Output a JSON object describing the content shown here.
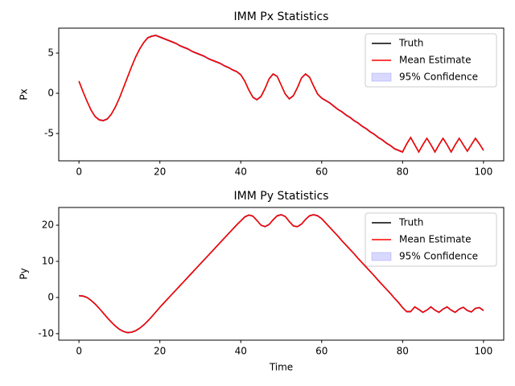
{
  "chart_data": [
    {
      "type": "line",
      "title": "IMM Px Statistics",
      "ylabel": "Px",
      "x": [
        0,
        1,
        2,
        3,
        4,
        5,
        6,
        7,
        8,
        9,
        10,
        11,
        12,
        13,
        14,
        15,
        16,
        17,
        18,
        19,
        20,
        21,
        22,
        23,
        24,
        25,
        26,
        27,
        28,
        29,
        30,
        31,
        32,
        33,
        34,
        35,
        36,
        37,
        38,
        39,
        40,
        41,
        42,
        43,
        44,
        45,
        46,
        47,
        48,
        49,
        50,
        51,
        52,
        53,
        54,
        55,
        56,
        57,
        58,
        59,
        60,
        61,
        62,
        63,
        64,
        65,
        66,
        67,
        68,
        69,
        70,
        71,
        72,
        73,
        74,
        75,
        76,
        77,
        78,
        79,
        80,
        81,
        82,
        83,
        84,
        85,
        86,
        87,
        88,
        89,
        90,
        91,
        92,
        93,
        94,
        95,
        96,
        97,
        98,
        99,
        100
      ],
      "series": [
        {
          "name": "Truth",
          "color": "#000000",
          "values": [
            1.5,
            0.2,
            -1.0,
            -2.1,
            -2.9,
            -3.3,
            -3.4,
            -3.2,
            -2.6,
            -1.7,
            -0.6,
            0.7,
            2.0,
            3.3,
            4.5,
            5.5,
            6.3,
            6.9,
            7.1,
            7.2,
            7.0,
            6.8,
            6.6,
            6.4,
            6.2,
            5.9,
            5.7,
            5.5,
            5.2,
            5.0,
            4.8,
            4.6,
            4.3,
            4.1,
            3.9,
            3.7,
            3.4,
            3.2,
            2.9,
            2.7,
            2.3,
            1.5,
            0.4,
            -0.5,
            -0.8,
            -0.4,
            0.6,
            1.8,
            2.4,
            2.1,
            1.0,
            -0.1,
            -0.7,
            -0.3,
            0.7,
            1.9,
            2.4,
            2.0,
            0.9,
            -0.1,
            -0.6,
            -0.9,
            -1.2,
            -1.6,
            -2.0,
            -2.3,
            -2.7,
            -3.0,
            -3.4,
            -3.7,
            -4.1,
            -4.4,
            -4.8,
            -5.1,
            -5.5,
            -5.8,
            -6.2,
            -6.5,
            -6.9,
            -7.1,
            -7.3,
            -6.3,
            -5.5,
            -6.4,
            -7.3,
            -6.4,
            -5.6,
            -6.4,
            -7.3,
            -6.4,
            -5.6,
            -6.4,
            -7.3,
            -6.4,
            -5.6,
            -6.4,
            -7.2,
            -6.4,
            -5.6,
            -6.3,
            -7.1
          ]
        },
        {
          "name": "Mean Estimate",
          "color": "#ff0000",
          "values": [
            1.5,
            0.2,
            -1.0,
            -2.1,
            -2.9,
            -3.3,
            -3.4,
            -3.2,
            -2.6,
            -1.7,
            -0.6,
            0.7,
            2.0,
            3.3,
            4.5,
            5.5,
            6.3,
            6.9,
            7.1,
            7.2,
            7.0,
            6.8,
            6.6,
            6.4,
            6.2,
            5.9,
            5.7,
            5.5,
            5.2,
            5.0,
            4.8,
            4.6,
            4.3,
            4.1,
            3.9,
            3.7,
            3.4,
            3.2,
            2.9,
            2.7,
            2.3,
            1.5,
            0.4,
            -0.5,
            -0.8,
            -0.4,
            0.6,
            1.8,
            2.4,
            2.1,
            1.0,
            -0.1,
            -0.7,
            -0.3,
            0.7,
            1.9,
            2.4,
            2.0,
            0.9,
            -0.1,
            -0.6,
            -0.9,
            -1.2,
            -1.6,
            -2.0,
            -2.3,
            -2.7,
            -3.0,
            -3.4,
            -3.7,
            -4.1,
            -4.4,
            -4.8,
            -5.1,
            -5.5,
            -5.8,
            -6.2,
            -6.5,
            -6.9,
            -7.1,
            -7.3,
            -6.3,
            -5.5,
            -6.4,
            -7.3,
            -6.4,
            -5.6,
            -6.4,
            -7.3,
            -6.4,
            -5.6,
            -6.4,
            -7.3,
            -6.4,
            -5.6,
            -6.4,
            -7.2,
            -6.4,
            -5.6,
            -6.3,
            -7.1
          ]
        },
        {
          "name": "95% Confidence",
          "color": "#0000ff",
          "error": 0.15
        }
      ],
      "xlim": [
        -5,
        105
      ],
      "ylim": [
        -8.4,
        8.1
      ],
      "xticks": [
        0,
        20,
        40,
        60,
        80,
        100
      ],
      "yticks": [
        -5,
        0,
        5
      ],
      "legend": "upper right"
    },
    {
      "type": "line",
      "title": "IMM Py Statistics",
      "xlabel": "Time",
      "ylabel": "Py",
      "x": [
        0,
        1,
        2,
        3,
        4,
        5,
        6,
        7,
        8,
        9,
        10,
        11,
        12,
        13,
        14,
        15,
        16,
        17,
        18,
        19,
        20,
        21,
        22,
        23,
        24,
        25,
        26,
        27,
        28,
        29,
        30,
        31,
        32,
        33,
        34,
        35,
        36,
        37,
        38,
        39,
        40,
        41,
        42,
        43,
        44,
        45,
        46,
        47,
        48,
        49,
        50,
        51,
        52,
        53,
        54,
        55,
        56,
        57,
        58,
        59,
        60,
        61,
        62,
        63,
        64,
        65,
        66,
        67,
        68,
        69,
        70,
        71,
        72,
        73,
        74,
        75,
        76,
        77,
        78,
        79,
        80,
        81,
        82,
        83,
        84,
        85,
        86,
        87,
        88,
        89,
        90,
        91,
        92,
        93,
        94,
        95,
        96,
        97,
        98,
        99,
        100
      ],
      "series": [
        {
          "name": "Truth",
          "color": "#000000",
          "values": [
            0.5,
            0.4,
            0,
            -0.8,
            -1.8,
            -3,
            -4.3,
            -5.6,
            -6.8,
            -7.9,
            -8.8,
            -9.4,
            -9.7,
            -9.6,
            -9.2,
            -8.5,
            -7.6,
            -6.5,
            -5.3,
            -4.0,
            -2.7,
            -1.5,
            -0.3,
            0.9,
            2.1,
            3.3,
            4.5,
            5.7,
            6.9,
            8.1,
            9.3,
            10.5,
            11.7,
            12.9,
            14.1,
            15.3,
            16.5,
            17.7,
            18.9,
            20.1,
            21.2,
            22.3,
            22.8,
            22.5,
            21.3,
            20.0,
            19.6,
            20.2,
            21.5,
            22.6,
            22.9,
            22.4,
            21.0,
            19.8,
            19.6,
            20.3,
            21.6,
            22.6,
            22.9,
            22.6,
            21.8,
            20.6,
            19.4,
            18.2,
            17.0,
            15.7,
            14.5,
            13.3,
            12.1,
            10.8,
            9.6,
            8.4,
            7.2,
            6.0,
            4.7,
            3.5,
            2.3,
            1.1,
            -0.2,
            -1.4,
            -2.8,
            -3.9,
            -3.9,
            -2.6,
            -3.3,
            -4.1,
            -3.5,
            -2.6,
            -3.5,
            -4.1,
            -3.2,
            -2.6,
            -3.5,
            -4.1,
            -3.2,
            -2.7,
            -3.6,
            -4.0,
            -3.0,
            -2.8,
            -3.6
          ]
        },
        {
          "name": "Mean Estimate",
          "color": "#ff0000",
          "values": [
            0.5,
            0.4,
            0,
            -0.8,
            -1.8,
            -3,
            -4.3,
            -5.6,
            -6.8,
            -7.9,
            -8.8,
            -9.4,
            -9.7,
            -9.6,
            -9.2,
            -8.5,
            -7.6,
            -6.5,
            -5.3,
            -4.0,
            -2.7,
            -1.5,
            -0.3,
            0.9,
            2.1,
            3.3,
            4.5,
            5.7,
            6.9,
            8.1,
            9.3,
            10.5,
            11.7,
            12.9,
            14.1,
            15.3,
            16.5,
            17.7,
            18.9,
            20.1,
            21.2,
            22.3,
            22.8,
            22.5,
            21.3,
            20.0,
            19.6,
            20.2,
            21.5,
            22.6,
            22.9,
            22.4,
            21.0,
            19.8,
            19.6,
            20.3,
            21.6,
            22.6,
            22.9,
            22.6,
            21.8,
            20.6,
            19.4,
            18.2,
            17.0,
            15.7,
            14.5,
            13.3,
            12.1,
            10.8,
            9.6,
            8.4,
            7.2,
            6.0,
            4.7,
            3.5,
            2.3,
            1.1,
            -0.2,
            -1.4,
            -2.8,
            -3.9,
            -3.9,
            -2.6,
            -3.3,
            -4.1,
            -3.5,
            -2.6,
            -3.5,
            -4.1,
            -3.2,
            -2.6,
            -3.5,
            -4.1,
            -3.2,
            -2.7,
            -3.6,
            -4.0,
            -3.0,
            -2.8,
            -3.6
          ]
        },
        {
          "name": "95% Confidence",
          "color": "#0000ff",
          "error": 0.3
        }
      ],
      "xlim": [
        -5,
        105
      ],
      "ylim": [
        -11.8,
        24.9
      ],
      "xticks": [
        0,
        20,
        40,
        60,
        80,
        100
      ],
      "yticks": [
        -10,
        0,
        10,
        20
      ],
      "legend": "upper right"
    }
  ]
}
